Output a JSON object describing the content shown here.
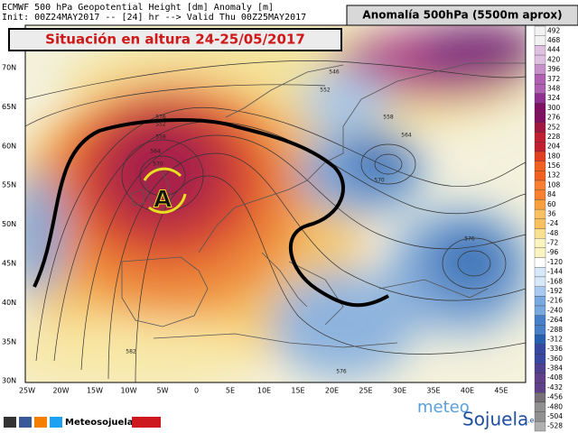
{
  "header": {
    "line1": "ECMWF 500 hPa Geopotential Height [dm] Anomaly [m]",
    "line2": "Init: 00Z24MAY2017 -- [24] hr --> Valid Thu 00Z25MAY2017",
    "legend_title": "Anomalía 500hPa (5500m aprox)"
  },
  "title": "Situación en altura 24-25/05/2017",
  "map": {
    "high_label": "A",
    "lat_labels": [
      "70N",
      "65N",
      "60N",
      "55N",
      "50N",
      "45N",
      "40N",
      "35N",
      "30N"
    ],
    "lon_labels": [
      "25W",
      "20W",
      "15W",
      "10W",
      "5W",
      "0",
      "5E",
      "10E",
      "15E",
      "20E",
      "25E",
      "30E",
      "35E",
      "40E",
      "45E"
    ],
    "contour_labels": [
      "552",
      "558",
      "564",
      "570",
      "576",
      "546",
      "552",
      "558",
      "564",
      "570",
      "576",
      "582",
      "576"
    ]
  },
  "colorbar": {
    "labels": [
      "492",
      "468",
      "444",
      "420",
      "396",
      "372",
      "348",
      "324",
      "300",
      "276",
      "252",
      "228",
      "204",
      "180",
      "156",
      "132",
      "108",
      "84",
      "60",
      "36",
      "-24",
      "-48",
      "-72",
      "-96",
      "-120",
      "-144",
      "-168",
      "-192",
      "-216",
      "-240",
      "-264",
      "-288",
      "-312",
      "-336",
      "-360",
      "-384",
      "-408",
      "-432",
      "-456",
      "-480",
      "-504",
      "-528"
    ]
  },
  "footer": {
    "social": "Meteosojuela",
    "brand1": "meteo",
    "brand2": "Sojuela",
    "brand3": ".es"
  }
}
